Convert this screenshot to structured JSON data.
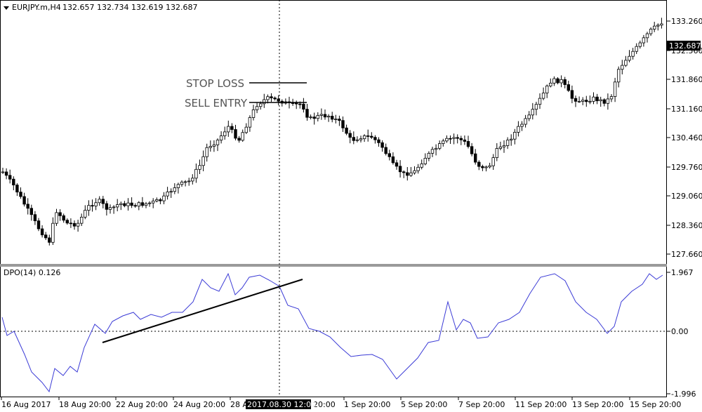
{
  "header": {
    "arrow_icon": "triangle-down-icon",
    "symbol": "EURJPY.m,H4",
    "ohlc": "132.657 132.734 132.619 132.687"
  },
  "price_axis": {
    "labels": [
      "133.260",
      "132.560",
      "131.860",
      "131.160",
      "130.460",
      "129.760",
      "129.060",
      "128.360",
      "127.660"
    ],
    "current_price": "132.687"
  },
  "annotations": {
    "stop_loss": "STOP LOSS",
    "sell_entry": "SELL ENTRY"
  },
  "indicator": {
    "label": "DPO(14) 0.126",
    "axis_labels": [
      "1.967",
      "0.00",
      "-1.996"
    ]
  },
  "time_axis": {
    "labels": [
      "16 Aug 2017",
      "18 Aug 20:00",
      "22 Aug 20:00",
      "24 Aug 20:00",
      "28 A",
      "20:00",
      "1 Sep 20:00",
      "5 Sep 20:00",
      "7 Sep 20:00",
      "11 Sep 20:00",
      "13 Sep 20:00",
      "15 Sep 20:00"
    ],
    "crosshair_time": "2017.08.30 12:00"
  },
  "colors": {
    "background": "#ffffff",
    "candle_outline": "#000000",
    "bear_fill": "#000000",
    "bull_fill": "#ffffff",
    "dpo_line": "#3b3bd6",
    "trendline": "#000000",
    "panel_separator": "#808080",
    "price_tag_bg": "#000000"
  }
}
